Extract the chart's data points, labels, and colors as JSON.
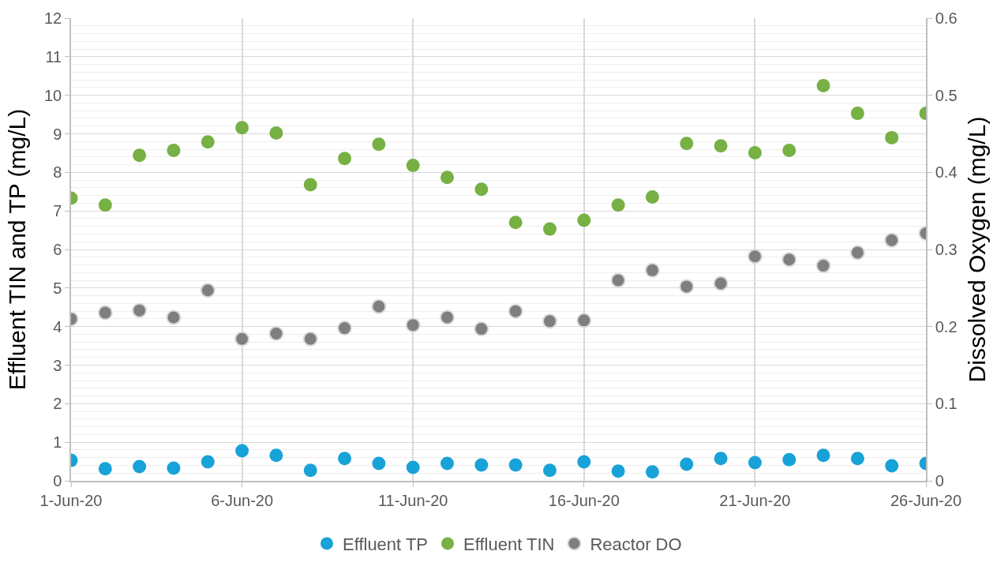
{
  "chart_data": {
    "type": "scatter",
    "ylabel": "Effluent TIN and TP (mg/L)",
    "y2label": "Dissolved Oxygen (mg/L)",
    "x": [
      "--06-01",
      "--06-02",
      "--06-03",
      "--06-04",
      "--06-05",
      "--06-06",
      "--06-07",
      "--06-08",
      "--06-09",
      "--06-10",
      "--06-11",
      "--06-12",
      "--06-13",
      "--06-14",
      "--06-15",
      "--06-16",
      "--06-17",
      "--06-18",
      "--06-19",
      "--06-20",
      "--06-21",
      "--06-22",
      "--06-23",
      "--06-24",
      "--06-25",
      "--06-26"
    ],
    "series": [
      {
        "name": "Effluent TP",
        "color": "#17a2d8",
        "values": [
          0.53,
          0.31,
          0.37,
          0.33,
          0.49,
          0.78,
          0.66,
          0.27,
          0.58,
          0.45,
          0.35,
          0.45,
          0.41,
          0.41,
          0.27,
          0.49,
          0.25,
          0.23,
          0.43,
          0.58,
          0.47,
          0.55,
          0.66,
          0.58,
          0.39,
          0.45
        ]
      },
      {
        "name": "Effluent TIN",
        "color": "#77b043",
        "values": [
          7.33,
          7.15,
          8.44,
          8.57,
          8.79,
          9.16,
          9.02,
          7.68,
          8.36,
          8.73,
          8.18,
          7.87,
          7.56,
          6.7,
          6.53,
          6.76,
          7.15,
          7.36,
          8.75,
          8.69,
          8.51,
          8.57,
          10.25,
          9.53,
          8.9,
          9.53
        ]
      },
      {
        "name": "Reactor DO",
        "color": "#7f7f7f",
        "axis": "y2",
        "values": [
          0.21,
          0.218,
          0.221,
          0.212,
          0.247,
          0.184,
          0.191,
          0.184,
          0.198,
          0.226,
          0.202,
          0.212,
          0.197,
          0.22,
          0.207,
          0.208,
          0.26,
          0.273,
          0.252,
          0.256,
          0.291,
          0.287,
          0.279,
          0.296,
          0.312,
          0.321
        ]
      }
    ],
    "xlim": [
      "--06-01",
      "--06-26"
    ],
    "xticks": [
      {
        "value": "--06-01",
        "label": "1-Jun-20"
      },
      {
        "value": "--06-06",
        "label": "6-Jun-20"
      },
      {
        "value": "--06-11",
        "label": "11-Jun-20"
      },
      {
        "value": "--06-16",
        "label": "16-Jun-20"
      },
      {
        "value": "--06-21",
        "label": "21-Jun-20"
      },
      {
        "value": "--06-26",
        "label": "26-Jun-20"
      }
    ],
    "ylim": [
      0,
      12
    ],
    "yticks": [
      0,
      1,
      2,
      3,
      4,
      5,
      6,
      7,
      8,
      9,
      10,
      11,
      12
    ],
    "y2lim": [
      0,
      0.6
    ],
    "y2ticks": [
      0,
      0.1,
      0.2,
      0.3,
      0.4,
      0.5,
      0.6
    ],
    "grid": true,
    "legend": "bottom",
    "marker": "circle"
  }
}
